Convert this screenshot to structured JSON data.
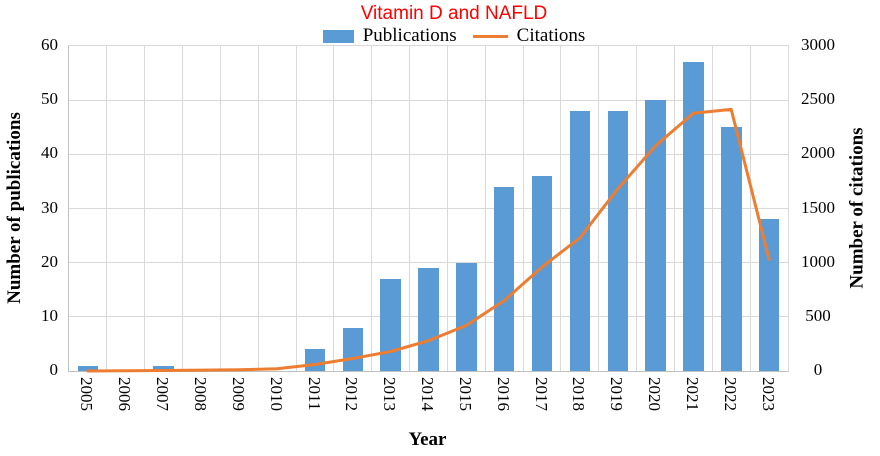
{
  "title": "Vitamin D and NAFLD",
  "legend": {
    "publications": "Publications",
    "citations": "Citations"
  },
  "colors": {
    "bar": "#5b9bd5",
    "line": "#ed7d31",
    "title": "#ff0000",
    "grid": "#d9d9d9",
    "axis": "#c0c0c0"
  },
  "chart_data": {
    "type": "bar+line combo",
    "title": "Vitamin D and NAFLD",
    "categories": [
      "2005",
      "2006",
      "2007",
      "2008",
      "2009",
      "2010",
      "2011",
      "2012",
      "2013",
      "2014",
      "2015",
      "2016",
      "2017",
      "2018",
      "2019",
      "2020",
      "2021",
      "2022",
      "2023"
    ],
    "series": [
      {
        "name": "Publications",
        "type": "bar",
        "axis": "left",
        "color": "#5b9bd5",
        "values": [
          1,
          0,
          1,
          0,
          0,
          0,
          4,
          8,
          17,
          19,
          20,
          34,
          36,
          48,
          48,
          50,
          57,
          45,
          28
        ]
      },
      {
        "name": "Citations",
        "type": "line",
        "axis": "right",
        "color": "#ed7d31",
        "values": [
          0,
          2,
          5,
          8,
          12,
          20,
          60,
          115,
          180,
          280,
          420,
          650,
          960,
          1230,
          1680,
          2080,
          2380,
          2415,
          1030
        ]
      }
    ],
    "left_axis": {
      "label": "Number of publications",
      "min": 0,
      "max": 60,
      "step": 10,
      "ticks": [
        0,
        10,
        20,
        30,
        40,
        50,
        60
      ]
    },
    "right_axis": {
      "label": "Number of citations",
      "min": 0,
      "max": 3000,
      "step": 500,
      "ticks": [
        0,
        500,
        1000,
        1500,
        2000,
        2500,
        3000
      ]
    },
    "x_axis": {
      "label": "Year"
    },
    "grid": true,
    "legend_position": "top"
  }
}
